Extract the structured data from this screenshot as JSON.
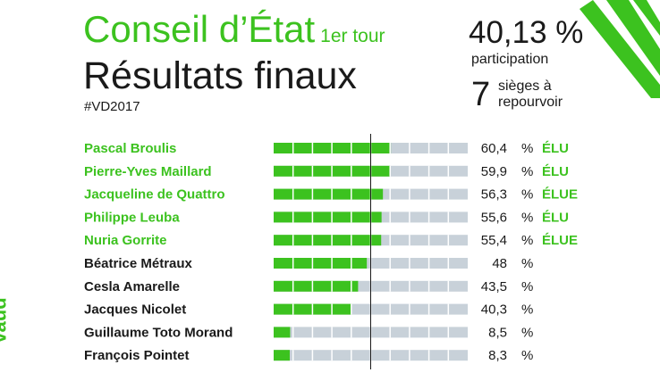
{
  "header": {
    "title": "Conseil d’État",
    "round": "1er tour",
    "subtitle": "Résultats finaux",
    "hashtag": "#VD2017",
    "turnout_value": "40,13 %",
    "turnout_label": "participation",
    "seats_value": "7",
    "seats_label": "sièges à repourvoir",
    "logo_text": "vaud"
  },
  "colors": {
    "accent": "#3cc21f",
    "bar_bg": "#c8d1d9",
    "text": "#1a1a1a"
  },
  "chart_data": {
    "type": "bar",
    "orientation": "horizontal",
    "categories": [
      "Pascal Broulis",
      "Pierre-Yves Maillard",
      "Jacqueline de Quattro",
      "Philippe Leuba",
      "Nuria Gorrite",
      "Béatrice Métraux",
      "Cesla Amarelle",
      "Jacques Nicolet",
      "Guillaume Toto Morand",
      "François Pointet"
    ],
    "values": [
      60.4,
      59.9,
      56.3,
      55.6,
      55.4,
      48,
      43.5,
      40.3,
      8.5,
      8.3
    ],
    "value_labels": [
      "60,4",
      "59,9",
      "56,3",
      "55,6",
      "55,4",
      "48",
      "43,5",
      "40,3",
      "8,5",
      "8,3"
    ],
    "unit": "%",
    "status": [
      "ÉLU",
      "ÉLU",
      "ÉLUE",
      "ÉLU",
      "ÉLUE",
      "",
      "",
      "",
      "",
      ""
    ],
    "elected": [
      true,
      true,
      true,
      true,
      true,
      false,
      false,
      false,
      false,
      false
    ],
    "xlim": [
      0,
      100
    ],
    "threshold": 50
  }
}
